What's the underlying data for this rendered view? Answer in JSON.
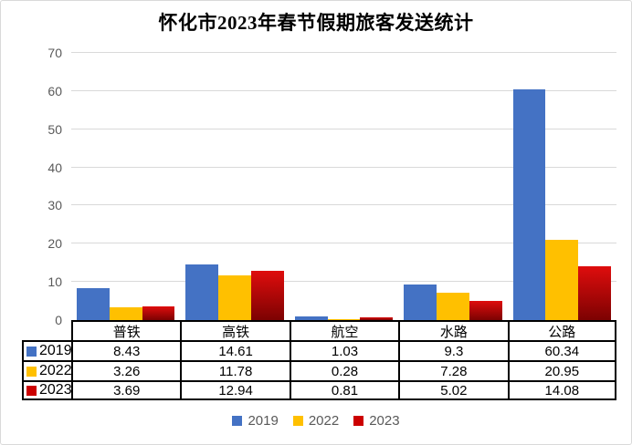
{
  "chart_data": {
    "type": "bar",
    "title": "怀化市2023年春节假期旅客发送统计",
    "categories": [
      "普铁",
      "高铁",
      "航空",
      "水路",
      "公路"
    ],
    "series": [
      {
        "name": "2019",
        "color": "#4472C4",
        "values": [
          8.43,
          14.61,
          1.03,
          9.3,
          60.34
        ]
      },
      {
        "name": "2022",
        "color": "#FFC000",
        "values": [
          3.26,
          11.78,
          0.28,
          7.28,
          20.95
        ]
      },
      {
        "name": "2023",
        "color": "#CC0000",
        "bar_gradient": [
          "#DF0D0D",
          "#7C0202"
        ],
        "values": [
          3.69,
          12.94,
          0.81,
          5.02,
          14.08
        ]
      }
    ],
    "ylim": [
      0,
      70
    ],
    "yticks": [
      0,
      10,
      20,
      30,
      40,
      50,
      60,
      70
    ],
    "xlabel": "",
    "ylabel": "",
    "grid": true,
    "legend_position": "bottom",
    "show_data_table": true,
    "colors": {
      "gridline": "#D9D9D9",
      "axis_label": "#595959",
      "table_border": "#000000",
      "legend_text": "#595959",
      "background": "#FFFFFF",
      "frame_border": "#D9D9D9"
    }
  }
}
